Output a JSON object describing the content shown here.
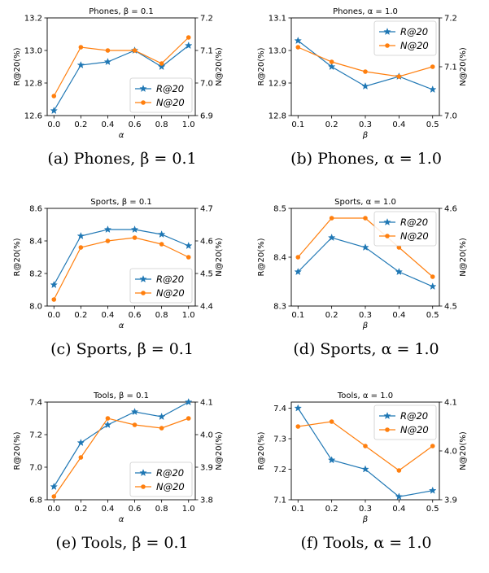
{
  "figure": {
    "colors": {
      "R": "#1f77b4",
      "N": "#ff7f0e"
    }
  },
  "chart_data": [
    {
      "type": "line",
      "title": "Phones, β = 0.1",
      "caption": "(a) Phones, β = 0.1",
      "xlabel": "α",
      "ylabel": "R@20(%)",
      "y2label": "N@20(%)",
      "x": [
        0.0,
        0.2,
        0.4,
        0.6,
        0.8,
        1.0
      ],
      "xticks": [
        "0.0",
        "0.2",
        "0.4",
        "0.6",
        "0.8",
        "1.0"
      ],
      "xlim": [
        -0.05,
        1.05
      ],
      "ylim": [
        12.6,
        13.2
      ],
      "yticks": [
        "12.6",
        "12.8",
        "13.0",
        "13.2"
      ],
      "y2lim": [
        6.9,
        7.2
      ],
      "y2ticks": [
        "6.9",
        "7.0",
        "7.1",
        "7.2"
      ],
      "legend_position": "lower-right",
      "series": [
        {
          "name": "R@20",
          "axis": "left",
          "marker": "star",
          "values": [
            12.63,
            12.91,
            12.93,
            13.0,
            12.9,
            13.03
          ]
        },
        {
          "name": "N@20",
          "axis": "right",
          "marker": "circle",
          "values": [
            6.96,
            7.11,
            7.1,
            7.1,
            7.06,
            7.14
          ]
        }
      ]
    },
    {
      "type": "line",
      "title": "Phones, α = 1.0",
      "caption": "(b) Phones, α = 1.0",
      "xlabel": "β",
      "ylabel": "R@20(%)",
      "y2label": "N@20(%)",
      "x": [
        0.1,
        0.2,
        0.3,
        0.4,
        0.5
      ],
      "xticks": [
        "0.1",
        "0.2",
        "0.3",
        "0.4",
        "0.5"
      ],
      "xlim": [
        0.08,
        0.52
      ],
      "ylim": [
        12.8,
        13.1
      ],
      "yticks": [
        "12.8",
        "12.9",
        "13.0",
        "13.1"
      ],
      "y2lim": [
        7.0,
        7.2
      ],
      "y2ticks": [
        "7.0",
        "7.1",
        "7.2"
      ],
      "legend_position": "upper-right",
      "series": [
        {
          "name": "R@20",
          "axis": "left",
          "marker": "star",
          "values": [
            13.03,
            12.95,
            12.89,
            12.92,
            12.88
          ]
        },
        {
          "name": "N@20",
          "axis": "right",
          "marker": "circle",
          "values": [
            7.14,
            7.11,
            7.09,
            7.08,
            7.1
          ]
        }
      ]
    },
    {
      "type": "line",
      "title": "Sports, β = 0.1",
      "caption": "(c) Sports, β = 0.1",
      "xlabel": "α",
      "ylabel": "R@20(%)",
      "y2label": "N@20(%)",
      "x": [
        0.0,
        0.2,
        0.4,
        0.6,
        0.8,
        1.0
      ],
      "xticks": [
        "0.0",
        "0.2",
        "0.4",
        "0.6",
        "0.8",
        "1.0"
      ],
      "xlim": [
        -0.05,
        1.05
      ],
      "ylim": [
        8.0,
        8.6
      ],
      "yticks": [
        "8.0",
        "8.2",
        "8.4",
        "8.6"
      ],
      "y2lim": [
        4.4,
        4.7
      ],
      "y2ticks": [
        "4.4",
        "4.5",
        "4.6",
        "4.7"
      ],
      "legend_position": "lower-right",
      "series": [
        {
          "name": "R@20",
          "axis": "left",
          "marker": "star",
          "values": [
            8.13,
            8.43,
            8.47,
            8.47,
            8.44,
            8.37
          ]
        },
        {
          "name": "N@20",
          "axis": "right",
          "marker": "circle",
          "values": [
            4.42,
            4.58,
            4.6,
            4.61,
            4.59,
            4.55
          ]
        }
      ]
    },
    {
      "type": "line",
      "title": "Sports, α = 1.0",
      "caption": "(d) Sports, α = 1.0",
      "xlabel": "β",
      "ylabel": "R@20(%)",
      "y2label": "N@20(%)",
      "x": [
        0.1,
        0.2,
        0.3,
        0.4,
        0.5
      ],
      "xticks": [
        "0.1",
        "0.2",
        "0.3",
        "0.4",
        "0.5"
      ],
      "xlim": [
        0.08,
        0.52
      ],
      "ylim": [
        8.3,
        8.5
      ],
      "yticks": [
        "8.3",
        "8.4",
        "8.5"
      ],
      "y2lim": [
        4.5,
        4.6
      ],
      "y2ticks": [
        "4.5",
        "4.6"
      ],
      "legend_position": "upper-right",
      "series": [
        {
          "name": "R@20",
          "axis": "left",
          "marker": "star",
          "values": [
            8.37,
            8.44,
            8.42,
            8.37,
            8.34
          ]
        },
        {
          "name": "N@20",
          "axis": "right",
          "marker": "circle",
          "values": [
            4.55,
            4.59,
            4.59,
            4.56,
            4.53
          ]
        }
      ]
    },
    {
      "type": "line",
      "title": "Tools, β = 0.1",
      "caption": "(e) Tools, β = 0.1",
      "xlabel": "α",
      "ylabel": "R@20(%)",
      "y2label": "N@20(%)",
      "x": [
        0.0,
        0.2,
        0.4,
        0.6,
        0.8,
        1.0
      ],
      "xticks": [
        "0.0",
        "0.2",
        "0.4",
        "0.6",
        "0.8",
        "1.0"
      ],
      "xlim": [
        -0.05,
        1.05
      ],
      "ylim": [
        6.8,
        7.4
      ],
      "yticks": [
        "6.8",
        "7.0",
        "7.2",
        "7.4"
      ],
      "y2lim": [
        3.8,
        4.1
      ],
      "y2ticks": [
        "3.8",
        "3.9",
        "4.0",
        "4.1"
      ],
      "legend_position": "lower-right",
      "series": [
        {
          "name": "R@20",
          "axis": "left",
          "marker": "star",
          "values": [
            6.88,
            7.15,
            7.26,
            7.34,
            7.31,
            7.4
          ]
        },
        {
          "name": "N@20",
          "axis": "right",
          "marker": "circle",
          "values": [
            3.81,
            3.93,
            4.05,
            4.03,
            4.02,
            4.05
          ]
        }
      ]
    },
    {
      "type": "line",
      "title": "Tools, α = 1.0",
      "caption": "(f) Tools, α = 1.0",
      "xlabel": "β",
      "ylabel": "R@20(%)",
      "y2label": "N@20(%)",
      "x": [
        0.1,
        0.2,
        0.3,
        0.4,
        0.5
      ],
      "xticks": [
        "0.1",
        "0.2",
        "0.3",
        "0.4",
        "0.5"
      ],
      "xlim": [
        0.08,
        0.52
      ],
      "ylim": [
        7.1,
        7.42
      ],
      "yticks": [
        "7.1",
        "7.2",
        "7.3",
        "7.4"
      ],
      "y2lim": [
        3.9,
        4.1
      ],
      "y2ticks": [
        "3.9",
        "4.0",
        "4.1"
      ],
      "legend_position": "upper-right",
      "series": [
        {
          "name": "R@20",
          "axis": "left",
          "marker": "star",
          "values": [
            7.4,
            7.23,
            7.2,
            7.11,
            7.13
          ]
        },
        {
          "name": "N@20",
          "axis": "right",
          "marker": "circle",
          "values": [
            4.05,
            4.06,
            4.01,
            3.96,
            4.01
          ]
        }
      ]
    }
  ]
}
